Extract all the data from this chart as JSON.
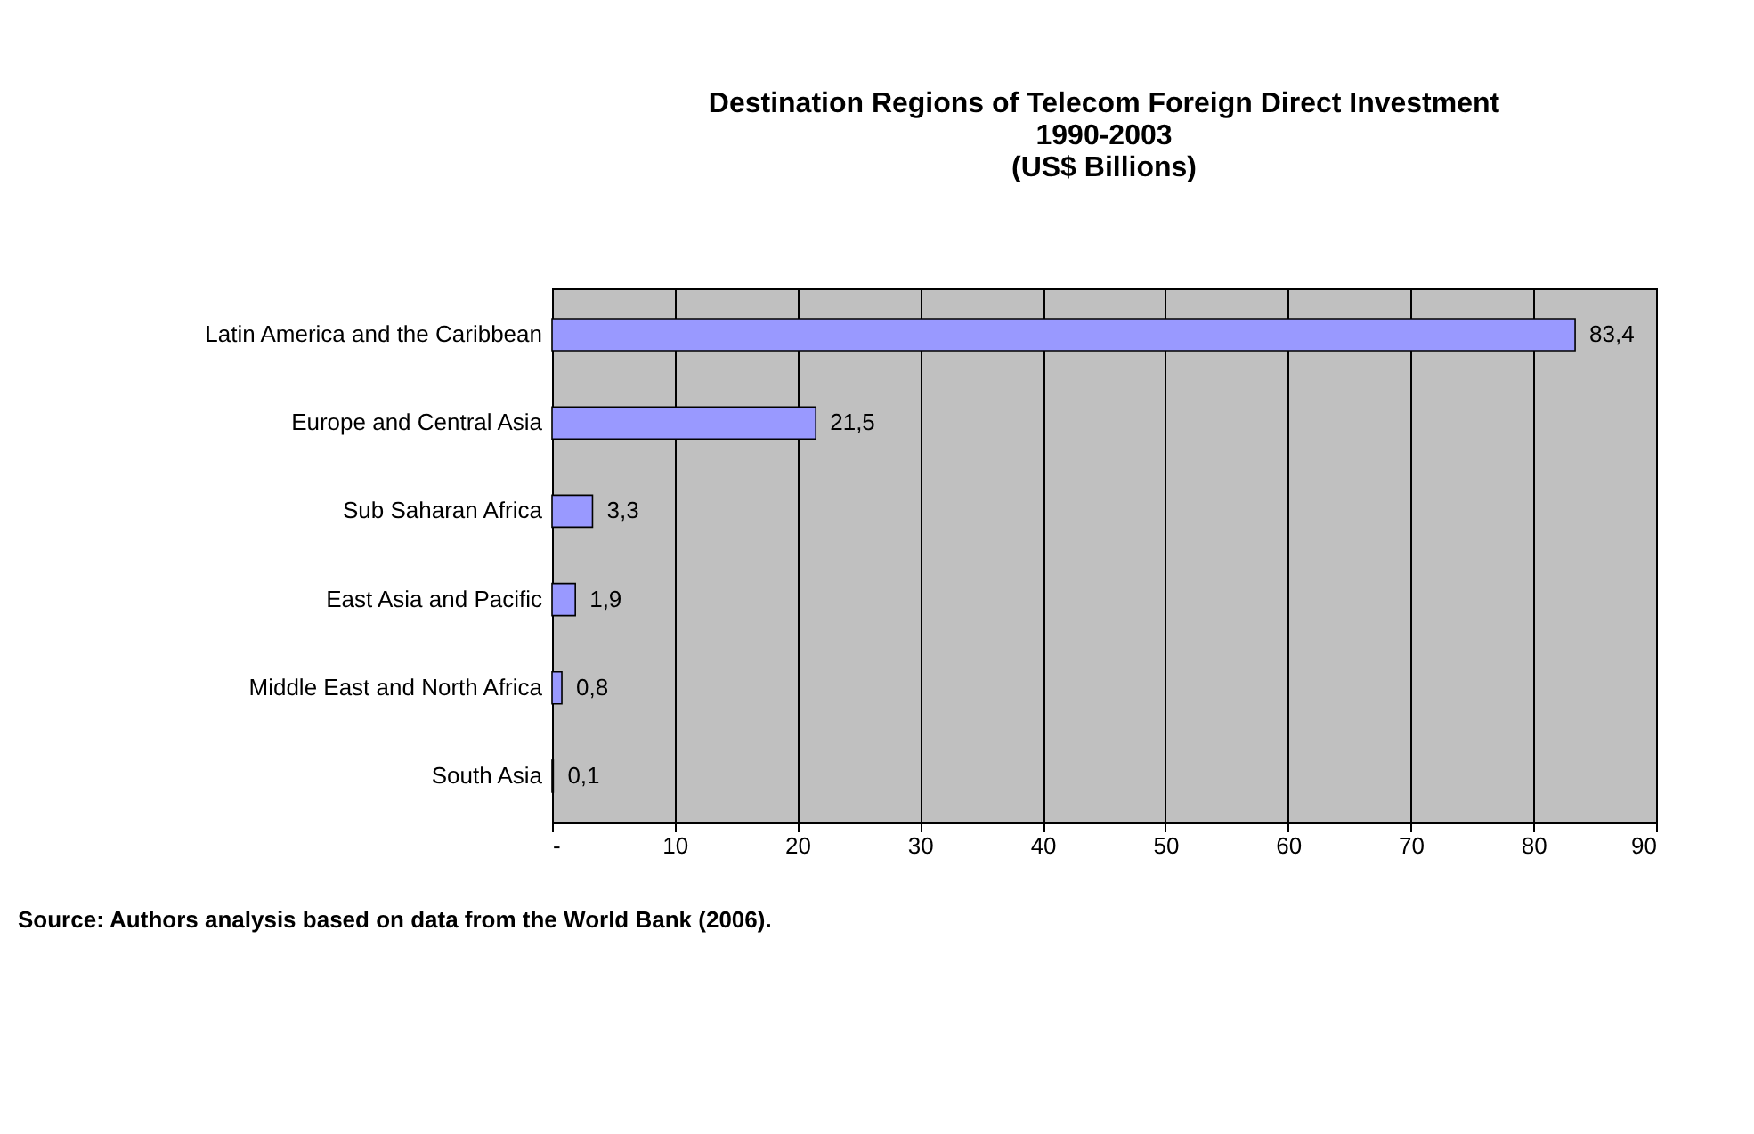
{
  "chart_data": {
    "type": "bar",
    "orientation": "horizontal",
    "title": "Destination Regions of Telecom Foreign Direct Investment\n1990-2003\n(US$ Billions)",
    "categories": [
      "Latin America and the Caribbean",
      "Europe and Central Asia",
      "Sub Saharan Africa",
      "East Asia and Pacific",
      "Middle East and North Africa",
      "South Asia"
    ],
    "values": [
      83.4,
      21.5,
      3.3,
      1.9,
      0.8,
      0.1
    ],
    "value_labels": [
      "83,4",
      "21,5",
      "3,3",
      "1,9",
      "0,8",
      "0,1"
    ],
    "color": "#9999ff",
    "xlim": [
      0,
      90
    ],
    "xticks": [
      {
        "value": 0,
        "label": "-"
      },
      10,
      20,
      30,
      40,
      50,
      60,
      70,
      80,
      90
    ],
    "grid": "x",
    "annotations": [
      "Source: Authors analysis based on data from the World Bank (2006)."
    ]
  }
}
